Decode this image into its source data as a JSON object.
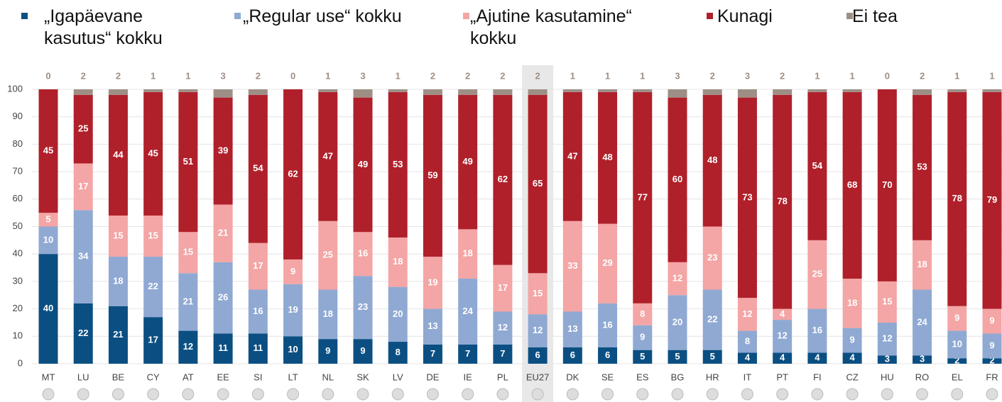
{
  "chart_data": {
    "type": "stacked_bar",
    "categories": [
      "MT",
      "LU",
      "BE",
      "CY",
      "AT",
      "EE",
      "SI",
      "LT",
      "NL",
      "SK",
      "LV",
      "DE",
      "IE",
      "PL",
      "EU27",
      "DK",
      "SE",
      "ES",
      "BG",
      "HR",
      "IT",
      "PT",
      "FI",
      "CZ",
      "HU",
      "RO",
      "EL",
      "FR"
    ],
    "series": [
      {
        "name": "„Igapäevane kasutus“ kokku",
        "color": "#0b4f82",
        "values": [
          40,
          22,
          21,
          17,
          12,
          11,
          11,
          10,
          9,
          9,
          8,
          7,
          7,
          7,
          6,
          6,
          6,
          5,
          5,
          5,
          4,
          4,
          4,
          4,
          3,
          3,
          2,
          2
        ]
      },
      {
        "name": "„Regular use“ kokku",
        "color": "#8fa9d3",
        "values": [
          10,
          34,
          18,
          22,
          21,
          26,
          16,
          19,
          18,
          23,
          20,
          13,
          24,
          12,
          12,
          13,
          16,
          9,
          20,
          22,
          8,
          12,
          16,
          9,
          12,
          24,
          10,
          9
        ]
      },
      {
        "name": "„Ajutine kasutamine“ kokku",
        "color": "#f4a5a5",
        "values": [
          5,
          17,
          15,
          15,
          15,
          21,
          17,
          9,
          25,
          16,
          18,
          19,
          18,
          17,
          15,
          33,
          29,
          8,
          12,
          23,
          12,
          4,
          25,
          18,
          15,
          18,
          9,
          9
        ]
      },
      {
        "name": "Kunagi",
        "color": "#b0202a",
        "values": [
          45,
          25,
          44,
          45,
          51,
          39,
          54,
          62,
          47,
          49,
          53,
          59,
          49,
          62,
          65,
          47,
          48,
          77,
          60,
          48,
          73,
          78,
          54,
          68,
          70,
          53,
          78,
          79
        ]
      },
      {
        "name": "Ei tea",
        "color": "#9e8f86",
        "values": [
          0,
          2,
          2,
          1,
          1,
          3,
          2,
          0,
          1,
          3,
          1,
          2,
          2,
          2,
          2,
          1,
          1,
          1,
          3,
          2,
          3,
          2,
          1,
          1,
          0,
          2,
          1,
          1
        ]
      }
    ],
    "ylim": [
      0,
      100
    ],
    "yticks": [
      0,
      10,
      20,
      30,
      40,
      50,
      60,
      70,
      80,
      90,
      100
    ],
    "grid": true
  }
}
